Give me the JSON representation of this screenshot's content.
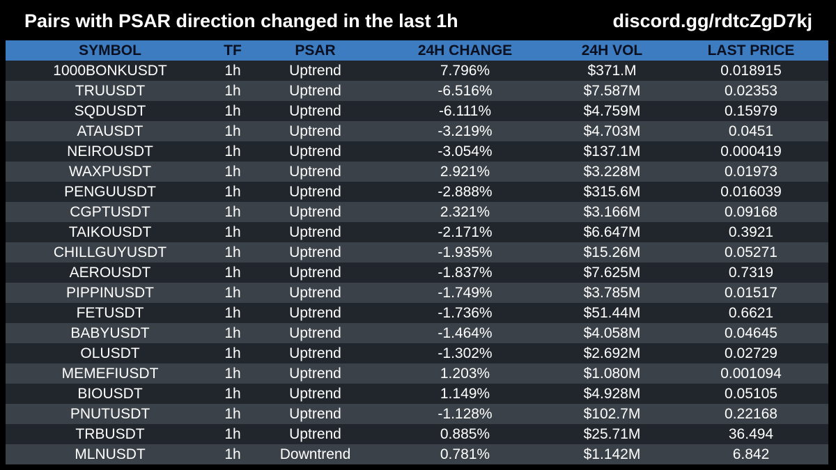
{
  "header": {
    "title": "Pairs with PSAR direction changed in the last 1h",
    "discord": "discord.gg/rdtcZgD7kj"
  },
  "table": {
    "columns": [
      "SYMBOL",
      "TF",
      "PSAR",
      "24H CHANGE",
      "24H VOL",
      "LAST PRICE"
    ],
    "rows": [
      [
        "1000BONKUSDT",
        "1h",
        "Uptrend",
        "7.796%",
        "$371.M",
        "0.018915"
      ],
      [
        "TRUUSDT",
        "1h",
        "Uptrend",
        "-6.516%",
        "$7.587M",
        "0.02353"
      ],
      [
        "SQDUSDT",
        "1h",
        "Uptrend",
        "-6.111%",
        "$4.759M",
        "0.15979"
      ],
      [
        "ATAUSDT",
        "1h",
        "Uptrend",
        "-3.219%",
        "$4.703M",
        "0.0451"
      ],
      [
        "NEIROUSDT",
        "1h",
        "Uptrend",
        "-3.054%",
        "$137.1M",
        "0.000419"
      ],
      [
        "WAXPUSDT",
        "1h",
        "Uptrend",
        "2.921%",
        "$3.228M",
        "0.01973"
      ],
      [
        "PENGUUSDT",
        "1h",
        "Uptrend",
        "-2.888%",
        "$315.6M",
        "0.016039"
      ],
      [
        "CGPTUSDT",
        "1h",
        "Uptrend",
        "2.321%",
        "$3.166M",
        "0.09168"
      ],
      [
        "TAIKOUSDT",
        "1h",
        "Uptrend",
        "-2.171%",
        "$6.647M",
        "0.3921"
      ],
      [
        "CHILLGUYUSDT",
        "1h",
        "Uptrend",
        "-1.935%",
        "$15.26M",
        "0.05271"
      ],
      [
        "AEROUSDT",
        "1h",
        "Uptrend",
        "-1.837%",
        "$7.625M",
        "0.7319"
      ],
      [
        "PIPPINUSDT",
        "1h",
        "Uptrend",
        "-1.749%",
        "$3.785M",
        "0.01517"
      ],
      [
        "FETUSDT",
        "1h",
        "Uptrend",
        "-1.736%",
        "$51.44M",
        "0.6621"
      ],
      [
        "BABYUSDT",
        "1h",
        "Uptrend",
        "-1.464%",
        "$4.058M",
        "0.04645"
      ],
      [
        "OLUSDT",
        "1h",
        "Uptrend",
        "-1.302%",
        "$2.692M",
        "0.02729"
      ],
      [
        "MEMEFIUSDT",
        "1h",
        "Uptrend",
        "1.203%",
        "$1.080M",
        "0.001094"
      ],
      [
        "BIOUSDT",
        "1h",
        "Uptrend",
        "1.149%",
        "$4.928M",
        "0.05105"
      ],
      [
        "PNUTUSDT",
        "1h",
        "Uptrend",
        "-1.128%",
        "$102.7M",
        "0.22168"
      ],
      [
        "TRBUSDT",
        "1h",
        "Uptrend",
        "0.885%",
        "$25.71M",
        "36.494"
      ],
      [
        "MLNUSDT",
        "1h",
        "Downtrend",
        "0.781%",
        "$1.142M",
        "6.842"
      ]
    ]
  },
  "colors": {
    "background": "#000000",
    "header_row": "#3d7cc0",
    "row_dark": "#20262c",
    "row_light": "#3a4148",
    "text": "#ffffff"
  }
}
